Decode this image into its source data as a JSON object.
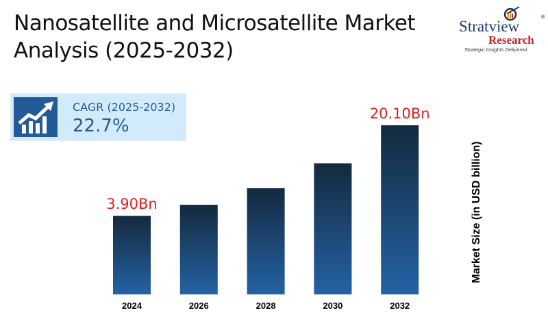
{
  "title": {
    "line1": "Nanosatellite and Microsatellite Market",
    "line2": "Analysis (2025-2032)"
  },
  "logo": {
    "brand": "Stratview",
    "sub": "Research",
    "tagline": "Strategic Insights Delivered",
    "mark": "®"
  },
  "cagr": {
    "label": "CAGR (2025-2032)",
    "value": "22.7%",
    "icon": "growth-chart-icon"
  },
  "chart_data": {
    "type": "bar",
    "categories": [
      "2024",
      "2026",
      "2028",
      "2030",
      "2032"
    ],
    "values": [
      3.9,
      5.87,
      8.84,
      13.3,
      20.1
    ],
    "data_labels": [
      "3.90Bn",
      "",
      "",
      "",
      "20.10Bn"
    ],
    "ylabel": "Market Size (in USD billion)",
    "xlabel": "",
    "grid": false,
    "colors": {
      "bar_top": "#142a3e",
      "bar_bottom": "#2462a4",
      "label": "#e0201e"
    }
  }
}
